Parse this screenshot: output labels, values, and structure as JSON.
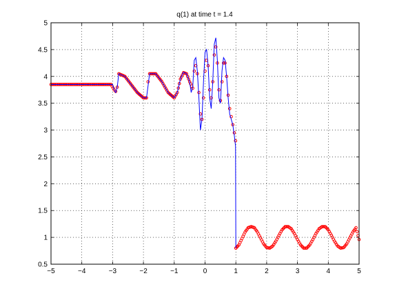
{
  "chart_data": {
    "type": "line",
    "title": "q(1)   at time t = 1.4",
    "xlabel": "",
    "ylabel": "",
    "xlim": [
      -5,
      5
    ],
    "ylim": [
      0.5,
      5
    ],
    "x_ticks": [
      -5,
      -4,
      -3,
      -2,
      -1,
      0,
      1,
      2,
      3,
      4,
      5
    ],
    "y_ticks": [
      0.5,
      1,
      1.5,
      2,
      2.5,
      3,
      3.5,
      4,
      4.5,
      5
    ],
    "x_tick_labels": [
      "−5",
      "−4",
      "−3",
      "−2",
      "−1",
      "0",
      "1",
      "2",
      "3",
      "4",
      "5"
    ],
    "y_tick_labels": [
      "0.5",
      "1",
      "1.5",
      "2",
      "2.5",
      "3",
      "3.5",
      "4",
      "4.5",
      "5"
    ],
    "grid": true,
    "colors": {
      "reference": "#0000ff",
      "numerical": "#ff0000",
      "axes": "#000000"
    },
    "series": [
      {
        "style": "solid-line",
        "color": "#0000ff",
        "x": [
          -5,
          -3.0,
          -2.95,
          -2.9,
          -2.85,
          -2.8,
          -2.6,
          -2.4,
          -2.2,
          -2.0,
          -1.9,
          -1.8,
          -1.6,
          -1.4,
          -1.2,
          -1.0,
          -0.9,
          -0.8,
          -0.7,
          -0.6,
          -0.5,
          -0.45,
          -0.4,
          -0.35,
          -0.3,
          -0.25,
          -0.2,
          -0.15,
          -0.1,
          -0.05,
          0.0,
          0.05,
          0.1,
          0.15,
          0.2,
          0.25,
          0.3,
          0.35,
          0.4,
          0.45,
          0.5,
          0.55,
          0.6,
          0.65,
          0.7,
          0.75,
          0.8,
          0.85,
          0.9,
          0.95,
          0.99,
          1.0
        ],
        "y": [
          3.85,
          3.85,
          3.75,
          3.7,
          3.8,
          4.05,
          4.0,
          3.85,
          3.7,
          3.6,
          3.6,
          4.05,
          4.05,
          3.9,
          3.7,
          3.6,
          3.7,
          3.95,
          4.08,
          4.05,
          3.9,
          3.7,
          3.8,
          4.3,
          4.35,
          4.1,
          3.6,
          3.0,
          3.2,
          3.9,
          4.45,
          4.5,
          4.2,
          3.6,
          3.4,
          3.9,
          4.6,
          4.72,
          4.3,
          3.6,
          3.5,
          4.1,
          4.35,
          4.3,
          4.0,
          3.6,
          3.3,
          3.2,
          3.1,
          2.9,
          2.7,
          0.8
        ]
      },
      {
        "style": "circle-markers",
        "color": "#ff0000",
        "x": [
          -5,
          -4.5,
          -4.0,
          -3.5,
          -3.05,
          -2.95,
          -2.9,
          -2.85,
          -2.8,
          -2.6,
          -2.4,
          -2.2,
          -2.0,
          -1.9,
          -1.85,
          -1.8,
          -1.6,
          -1.4,
          -1.2,
          -1.0,
          -0.9,
          -0.8,
          -0.7,
          -0.6,
          -0.5,
          -0.4,
          -0.35,
          -0.3,
          -0.25,
          -0.2,
          -0.15,
          -0.1,
          -0.05,
          0.0,
          0.05,
          0.1,
          0.15,
          0.2,
          0.25,
          0.3,
          0.35,
          0.4,
          0.45,
          0.5,
          0.55,
          0.6,
          0.65,
          0.7,
          0.75,
          0.8,
          0.85,
          0.9,
          0.95,
          0.99,
          1.0
        ],
        "y": [
          3.85,
          3.85,
          3.85,
          3.85,
          3.85,
          3.75,
          3.72,
          3.8,
          4.05,
          4.0,
          3.85,
          3.7,
          3.6,
          3.6,
          3.9,
          4.05,
          4.05,
          3.9,
          3.7,
          3.6,
          3.7,
          3.95,
          4.07,
          4.05,
          3.9,
          3.78,
          4.1,
          4.2,
          4.05,
          3.7,
          3.3,
          3.2,
          3.6,
          4.1,
          4.3,
          4.2,
          3.75,
          3.6,
          3.9,
          4.4,
          4.55,
          4.25,
          3.75,
          3.55,
          3.9,
          4.25,
          4.25,
          4.0,
          3.65,
          3.4,
          3.25,
          3.1,
          2.95,
          2.8,
          0.8
        ]
      },
      {
        "style": "circle-markers",
        "color": "#ff0000",
        "x": [
          1.0,
          1.1,
          1.2,
          1.3,
          1.4,
          1.5,
          1.6,
          1.7,
          1.8,
          1.9,
          2.0,
          2.1,
          2.2,
          2.3,
          2.4,
          2.5,
          2.6,
          2.7,
          2.8,
          2.9,
          3.0,
          3.1,
          3.2,
          3.3,
          3.4,
          3.5,
          3.6,
          3.7,
          3.8,
          3.9,
          4.0,
          4.1,
          4.2,
          4.3,
          4.4,
          4.5,
          4.6,
          4.7,
          4.8,
          4.9,
          5.0
        ],
        "y": [
          0.8,
          0.86,
          0.98,
          1.1,
          1.18,
          1.2,
          1.18,
          1.1,
          0.99,
          0.88,
          0.81,
          0.8,
          0.84,
          0.93,
          1.04,
          1.14,
          1.2,
          1.2,
          1.16,
          1.07,
          0.96,
          0.86,
          0.8,
          0.8,
          0.86,
          0.96,
          1.07,
          1.16,
          1.2,
          1.2,
          1.14,
          1.04,
          0.93,
          0.84,
          0.8,
          0.81,
          0.88,
          0.99,
          1.1,
          1.18,
          0.96
        ]
      }
    ]
  }
}
